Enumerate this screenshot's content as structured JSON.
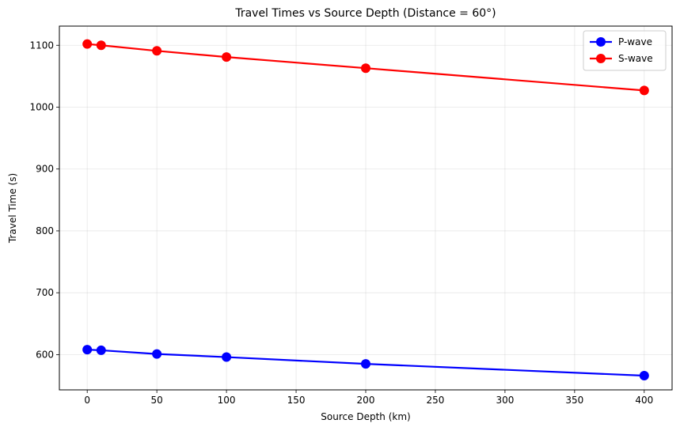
{
  "chart_data": {
    "type": "line",
    "title": "Travel Times vs Source Depth (Distance = 60°)",
    "xlabel": "Source Depth (km)",
    "ylabel": "Travel Time (s)",
    "x": [
      0,
      10,
      50,
      100,
      200,
      400
    ],
    "xlim": [
      -20,
      420
    ],
    "ylim": [
      543,
      1131
    ],
    "xticks": [
      0,
      50,
      100,
      150,
      200,
      250,
      300,
      350,
      400
    ],
    "yticks": [
      600,
      700,
      800,
      900,
      1000,
      1100
    ],
    "grid": true,
    "legend_position": "top-right",
    "series": [
      {
        "name": "P-wave",
        "color": "#0000ff",
        "values": [
          608,
          607,
          601,
          596,
          585,
          566
        ]
      },
      {
        "name": "S-wave",
        "color": "#ff0000",
        "values": [
          1102,
          1100,
          1091,
          1081,
          1063,
          1027
        ]
      }
    ]
  }
}
